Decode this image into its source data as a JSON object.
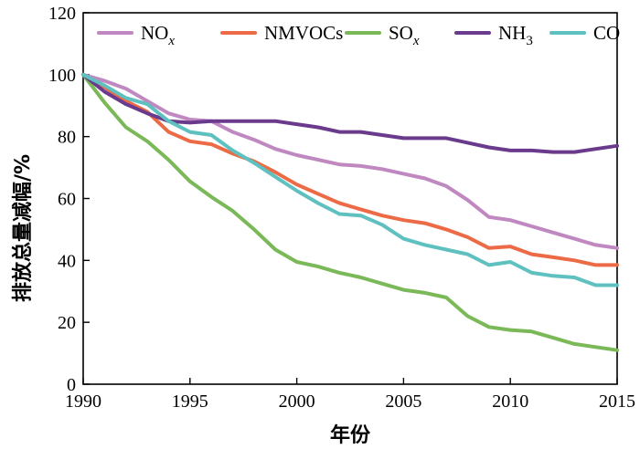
{
  "chart_data": {
    "type": "line",
    "title": "",
    "xlabel": "年份",
    "ylabel": "排放总量减幅/%",
    "xlim": [
      1990,
      2015
    ],
    "ylim": [
      0,
      120
    ],
    "xticks": [
      1990,
      1995,
      2000,
      2005,
      2010,
      2015
    ],
    "yticks": [
      0,
      20,
      40,
      60,
      80,
      100,
      120
    ],
    "grid": false,
    "legend_position": "top",
    "x": [
      1990,
      1991,
      1992,
      1993,
      1994,
      1995,
      1996,
      1997,
      1998,
      1999,
      2000,
      2001,
      2002,
      2003,
      2004,
      2005,
      2006,
      2007,
      2008,
      2009,
      2010,
      2011,
      2012,
      2013,
      2014,
      2015
    ],
    "series": [
      {
        "name": "NO",
        "name_sub": "x",
        "color": "#c088c0",
        "values": [
          100,
          98,
          95.5,
          91.5,
          87.5,
          85.5,
          85,
          81.5,
          79,
          76,
          74,
          72.5,
          71,
          70.5,
          69.5,
          68,
          66.5,
          64,
          59.5,
          54,
          53,
          51,
          49,
          47,
          45,
          44
        ]
      },
      {
        "name": "NMVOCs",
        "name_sub": "",
        "color": "#ec6a45",
        "values": [
          100,
          96,
          91.5,
          88,
          81.5,
          78.5,
          77.5,
          74.5,
          72,
          68.5,
          64.5,
          61.5,
          58.5,
          56.5,
          54.5,
          53,
          52,
          50,
          47.5,
          44,
          44.5,
          42,
          41,
          40,
          38.5,
          38.5
        ]
      },
      {
        "name": "SO",
        "name_sub": "x",
        "color": "#7ab858",
        "values": [
          100,
          91,
          83,
          78.5,
          72.5,
          65.5,
          60.5,
          56,
          50,
          43.5,
          39.5,
          38,
          36,
          34.5,
          32.5,
          30.5,
          29.5,
          28,
          22,
          18.5,
          17.5,
          17,
          15,
          13,
          12,
          11
        ]
      },
      {
        "name": "NH",
        "name_sub": "3",
        "color": "#6a3a8c",
        "values": [
          100,
          94.5,
          90.5,
          87.5,
          85,
          84.5,
          85,
          85,
          85,
          85,
          84,
          83,
          81.5,
          81.5,
          80.5,
          79.5,
          79.5,
          79.5,
          78,
          76.5,
          75.5,
          75.5,
          75,
          75,
          76,
          77
        ]
      },
      {
        "name": "CO",
        "name_sub": "",
        "color": "#5fc0c0",
        "values": [
          100,
          96.5,
          92.5,
          90.5,
          85,
          81.5,
          80.5,
          75.5,
          71.5,
          67,
          62.5,
          58.5,
          55,
          54.5,
          51.5,
          47,
          45,
          43.5,
          42,
          38.5,
          39.5,
          36,
          35,
          34.5,
          32,
          32
        ]
      }
    ]
  }
}
